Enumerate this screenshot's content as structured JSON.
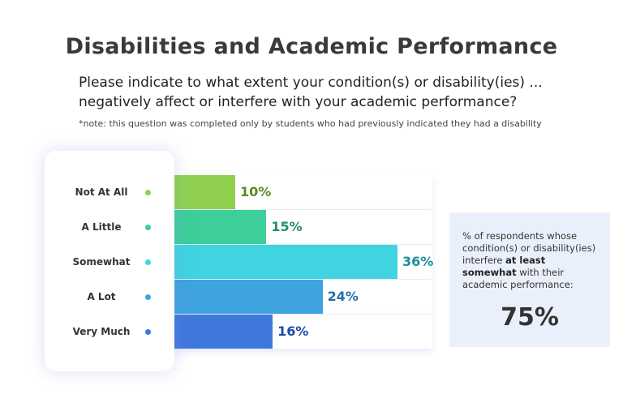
{
  "title": "Disabilities and Academic Performance",
  "subtitle": "Please indicate to what extent your condition(s) or disability(ies) ... negatively affect or interfere with your academic performance?",
  "note": "*note: this question was completed only by students who had previously indicated they had a disability",
  "summary": {
    "text_before": "% of respondents whose condition(s) or disability(ies) interfere ",
    "text_bold": "at least somewhat",
    "text_after": " with their academic performance:",
    "value": "75%"
  },
  "chart_data": {
    "type": "bar",
    "orientation": "horizontal",
    "categories": [
      "Not At All",
      "A Little",
      "Somewhat",
      "A Lot",
      "Very Much"
    ],
    "values": [
      10,
      15,
      36,
      24,
      16
    ],
    "value_labels": [
      "10%",
      "15%",
      "36%",
      "24%",
      "16%"
    ],
    "colors": [
      "#8fd14f",
      "#3dcf9a",
      "#40d4e0",
      "#3fa3e0",
      "#3f78db"
    ],
    "label_colors": [
      "#5a8a1f",
      "#1f8f6a",
      "#1a8fa0",
      "#1f6fb0",
      "#1f4aa8"
    ],
    "xlim": [
      0,
      36
    ],
    "grid": false,
    "legend": "none"
  }
}
